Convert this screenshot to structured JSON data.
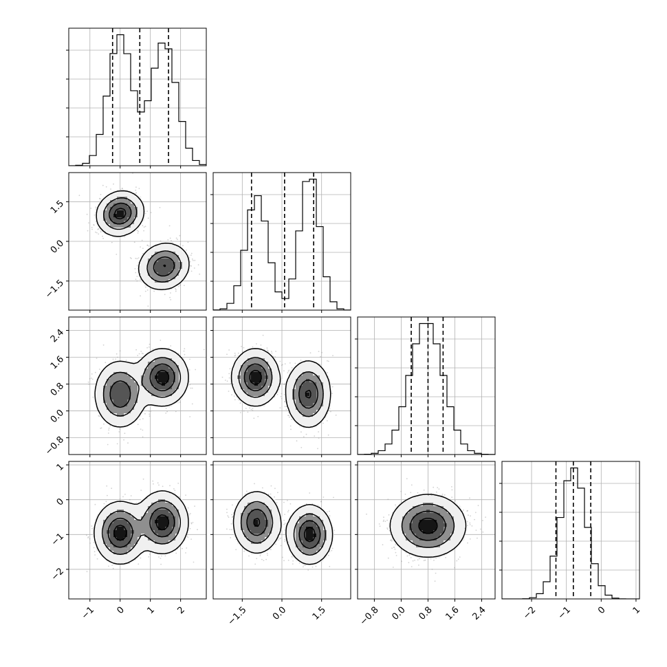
{
  "chart_data": {
    "type": "corner",
    "grid": true,
    "colors": {
      "ink": "#000000",
      "grid": "#b0b0b0",
      "points": "#9a9a9a"
    },
    "parameters": [
      {
        "range": [
          -1.7,
          2.85
        ],
        "ticks": [
          -1,
          0,
          1,
          2
        ],
        "tick_labels": [
          "−1",
          "0",
          "1",
          "2"
        ],
        "quantiles": [
          -0.25,
          0.65,
          1.6
        ],
        "modes": [
          {
            "mu": 0.0,
            "sigma": 0.4,
            "w": 0.5
          },
          {
            "mu": 1.45,
            "sigma": 0.42,
            "w": 0.5
          }
        ]
      },
      {
        "range": [
          -2.6,
          2.6
        ],
        "ticks": [
          -1.5,
          0.0,
          1.5
        ],
        "tick_labels": [
          "−1.5",
          "0.0",
          "1.5"
        ],
        "quantiles": [
          -1.15,
          0.1,
          1.2
        ],
        "modes": [
          {
            "mu": -0.95,
            "sigma": 0.42,
            "w": 0.48
          },
          {
            "mu": 1.05,
            "sigma": 0.38,
            "w": 0.52
          }
        ]
      },
      {
        "range": [
          -1.3,
          2.8
        ],
        "ticks": [
          -0.8,
          0.0,
          0.8,
          1.6,
          2.4
        ],
        "tick_labels": [
          "−0.8",
          "0.0",
          "0.8",
          "1.6",
          "2.4"
        ],
        "quantiles": [
          0.3,
          0.8,
          1.25
        ],
        "modes": [
          {
            "mu": 0.75,
            "sigma": 0.5,
            "w": 1.0
          }
        ]
      },
      {
        "range": [
          -2.85,
          1.1
        ],
        "ticks": [
          -2,
          -1,
          0,
          1
        ],
        "tick_labels": [
          "−2",
          "−1",
          "0",
          "1"
        ],
        "quantiles": [
          -1.3,
          -0.8,
          -0.3
        ],
        "modes": [
          {
            "mu": -0.8,
            "sigma": 0.38,
            "w": 1.0
          }
        ]
      }
    ],
    "pairs": [
      {
        "row": 1,
        "col": 0,
        "clusters": [
          {
            "mx": 0.0,
            "my": 1.05,
            "sx": 0.35,
            "sy": 0.38,
            "rho": 0.1,
            "w": 0.5
          },
          {
            "mx": 1.45,
            "my": -0.95,
            "sx": 0.38,
            "sy": 0.4,
            "rho": 0.1,
            "w": 0.5
          }
        ]
      },
      {
        "row": 2,
        "col": 0,
        "clusters": [
          {
            "mx": 0.0,
            "my": 0.5,
            "sx": 0.38,
            "sy": 0.45,
            "rho": 0.0,
            "w": 0.5
          },
          {
            "mx": 1.4,
            "my": 1.0,
            "sx": 0.38,
            "sy": 0.38,
            "rho": 0.0,
            "w": 0.5
          }
        ]
      },
      {
        "row": 2,
        "col": 1,
        "clusters": [
          {
            "mx": -1.0,
            "my": 1.0,
            "sx": 0.4,
            "sy": 0.38,
            "rho": 0.0,
            "w": 0.5
          },
          {
            "mx": 1.0,
            "my": 0.5,
            "sx": 0.38,
            "sy": 0.45,
            "rho": 0.0,
            "w": 0.5
          }
        ]
      },
      {
        "row": 3,
        "col": 0,
        "clusters": [
          {
            "mx": 0.0,
            "my": -0.95,
            "sx": 0.38,
            "sy": 0.4,
            "rho": 0.0,
            "w": 0.5
          },
          {
            "mx": 1.4,
            "my": -0.65,
            "sx": 0.38,
            "sy": 0.4,
            "rho": 0.0,
            "w": 0.5
          }
        ]
      },
      {
        "row": 3,
        "col": 1,
        "clusters": [
          {
            "mx": -0.95,
            "my": -0.65,
            "sx": 0.4,
            "sy": 0.4,
            "rho": 0.0,
            "w": 0.5
          },
          {
            "mx": 1.05,
            "my": -1.0,
            "sx": 0.38,
            "sy": 0.38,
            "rho": 0.0,
            "w": 0.5
          }
        ]
      },
      {
        "row": 3,
        "col": 2,
        "clusters": [
          {
            "mx": 0.8,
            "my": -0.75,
            "sx": 0.5,
            "sy": 0.4,
            "rho": 0.0,
            "w": 1.0
          }
        ]
      }
    ]
  }
}
